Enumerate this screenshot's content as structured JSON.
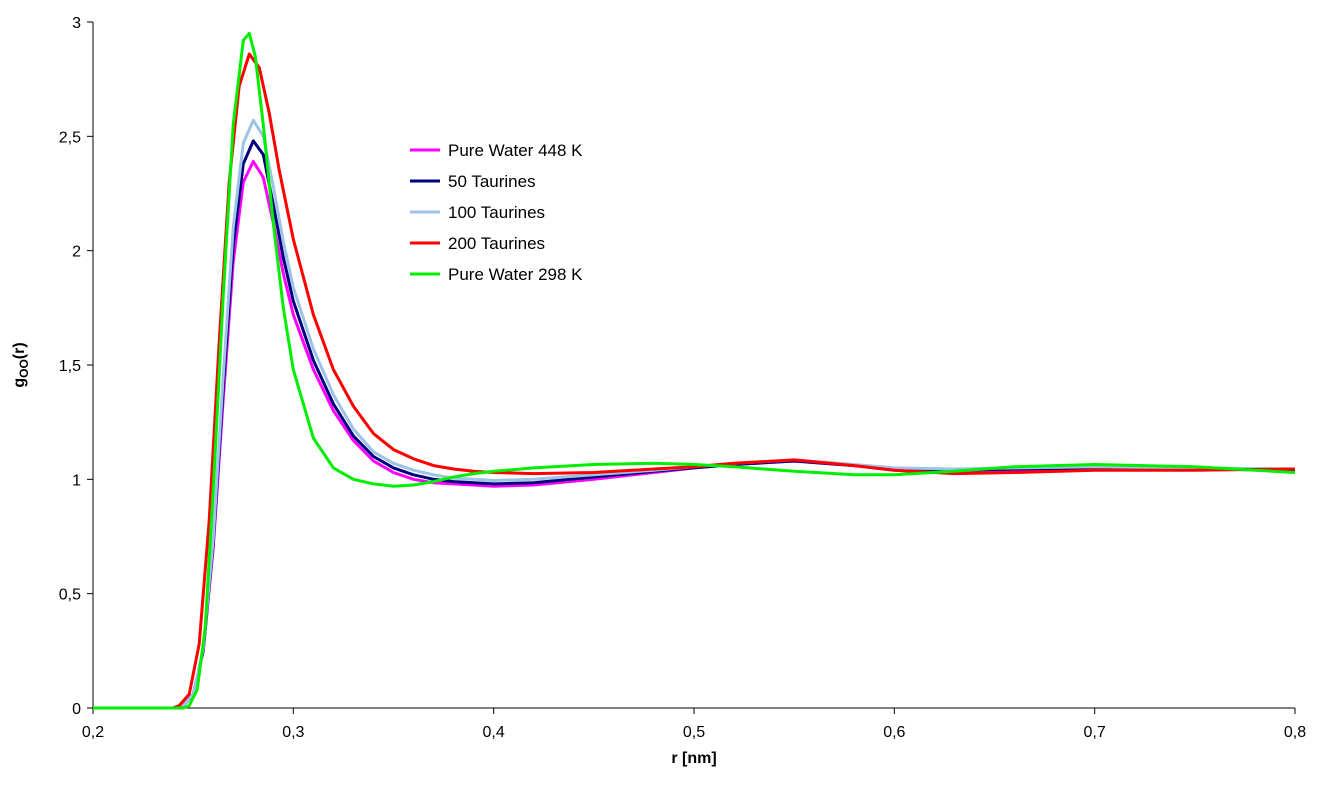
{
  "chart_data": {
    "type": "line",
    "xlabel": "r [nm]",
    "ylabel": "g",
    "ylabel_subscript": "OO",
    "ylabel_suffix": "(r)",
    "xlim": [
      0.2,
      0.8
    ],
    "ylim": [
      0,
      3
    ],
    "x_ticks": [
      0.2,
      0.3,
      0.4,
      0.5,
      0.6,
      0.7,
      0.8
    ],
    "x_tick_labels": [
      "0,2",
      "0,3",
      "0,4",
      "0,5",
      "0,6",
      "0,7",
      "0,8"
    ],
    "y_ticks": [
      0,
      0.5,
      1,
      1.5,
      2,
      2.5,
      3
    ],
    "y_tick_labels": [
      "0",
      "0,5",
      "1",
      "1,5",
      "2",
      "2,5",
      "3"
    ],
    "grid": false,
    "legend_position": "upper-center",
    "series": [
      {
        "name": "Pure Water 448 K",
        "color": "#ff00ff",
        "points": [
          [
            0.2,
            0
          ],
          [
            0.24,
            0
          ],
          [
            0.245,
            0.01
          ],
          [
            0.25,
            0.06
          ],
          [
            0.255,
            0.25
          ],
          [
            0.26,
            0.7
          ],
          [
            0.265,
            1.35
          ],
          [
            0.27,
            1.95
          ],
          [
            0.275,
            2.3
          ],
          [
            0.28,
            2.39
          ],
          [
            0.285,
            2.32
          ],
          [
            0.29,
            2.12
          ],
          [
            0.295,
            1.9
          ],
          [
            0.3,
            1.72
          ],
          [
            0.31,
            1.48
          ],
          [
            0.32,
            1.3
          ],
          [
            0.33,
            1.17
          ],
          [
            0.34,
            1.08
          ],
          [
            0.35,
            1.03
          ],
          [
            0.36,
            1.0
          ],
          [
            0.37,
            0.985
          ],
          [
            0.38,
            0.98
          ],
          [
            0.39,
            0.975
          ],
          [
            0.4,
            0.97
          ],
          [
            0.42,
            0.975
          ],
          [
            0.45,
            1.0
          ],
          [
            0.48,
            1.03
          ],
          [
            0.5,
            1.05
          ],
          [
            0.52,
            1.065
          ],
          [
            0.55,
            1.08
          ],
          [
            0.58,
            1.06
          ],
          [
            0.6,
            1.04
          ],
          [
            0.63,
            1.035
          ],
          [
            0.66,
            1.04
          ],
          [
            0.7,
            1.05
          ],
          [
            0.75,
            1.045
          ],
          [
            0.8,
            1.04
          ]
        ]
      },
      {
        "name": "50 Taurines",
        "color": "#000080",
        "points": [
          [
            0.2,
            0
          ],
          [
            0.24,
            0
          ],
          [
            0.245,
            0.01
          ],
          [
            0.25,
            0.06
          ],
          [
            0.255,
            0.25
          ],
          [
            0.26,
            0.72
          ],
          [
            0.265,
            1.4
          ],
          [
            0.27,
            2.02
          ],
          [
            0.275,
            2.38
          ],
          [
            0.28,
            2.48
          ],
          [
            0.285,
            2.42
          ],
          [
            0.29,
            2.2
          ],
          [
            0.295,
            1.97
          ],
          [
            0.3,
            1.78
          ],
          [
            0.31,
            1.52
          ],
          [
            0.32,
            1.33
          ],
          [
            0.33,
            1.19
          ],
          [
            0.34,
            1.1
          ],
          [
            0.35,
            1.05
          ],
          [
            0.36,
            1.02
          ],
          [
            0.37,
            1.0
          ],
          [
            0.38,
            0.99
          ],
          [
            0.39,
            0.985
          ],
          [
            0.4,
            0.98
          ],
          [
            0.42,
            0.985
          ],
          [
            0.45,
            1.01
          ],
          [
            0.48,
            1.035
          ],
          [
            0.5,
            1.05
          ],
          [
            0.52,
            1.065
          ],
          [
            0.55,
            1.08
          ],
          [
            0.58,
            1.06
          ],
          [
            0.6,
            1.045
          ],
          [
            0.63,
            1.04
          ],
          [
            0.66,
            1.045
          ],
          [
            0.7,
            1.05
          ],
          [
            0.75,
            1.045
          ],
          [
            0.8,
            1.04
          ]
        ]
      },
      {
        "name": "100 Taurines",
        "color": "#9dc3e6",
        "points": [
          [
            0.2,
            0
          ],
          [
            0.24,
            0
          ],
          [
            0.245,
            0.01
          ],
          [
            0.25,
            0.06
          ],
          [
            0.255,
            0.26
          ],
          [
            0.26,
            0.74
          ],
          [
            0.265,
            1.45
          ],
          [
            0.27,
            2.1
          ],
          [
            0.275,
            2.47
          ],
          [
            0.28,
            2.57
          ],
          [
            0.285,
            2.5
          ],
          [
            0.29,
            2.28
          ],
          [
            0.295,
            2.04
          ],
          [
            0.3,
            1.84
          ],
          [
            0.31,
            1.57
          ],
          [
            0.32,
            1.37
          ],
          [
            0.33,
            1.22
          ],
          [
            0.34,
            1.12
          ],
          [
            0.35,
            1.07
          ],
          [
            0.36,
            1.04
          ],
          [
            0.37,
            1.02
          ],
          [
            0.38,
            1.005
          ],
          [
            0.39,
            1.0
          ],
          [
            0.4,
            0.995
          ],
          [
            0.42,
            1.0
          ],
          [
            0.45,
            1.02
          ],
          [
            0.48,
            1.04
          ],
          [
            0.5,
            1.055
          ],
          [
            0.52,
            1.07
          ],
          [
            0.55,
            1.085
          ],
          [
            0.58,
            1.065
          ],
          [
            0.6,
            1.05
          ],
          [
            0.63,
            1.045
          ],
          [
            0.66,
            1.05
          ],
          [
            0.7,
            1.055
          ],
          [
            0.75,
            1.05
          ],
          [
            0.8,
            1.045
          ]
        ]
      },
      {
        "name": "200 Taurines",
        "color": "#ff0000",
        "points": [
          [
            0.2,
            0
          ],
          [
            0.24,
            0
          ],
          [
            0.243,
            0.01
          ],
          [
            0.248,
            0.06
          ],
          [
            0.253,
            0.28
          ],
          [
            0.258,
            0.82
          ],
          [
            0.263,
            1.6
          ],
          [
            0.268,
            2.3
          ],
          [
            0.273,
            2.72
          ],
          [
            0.278,
            2.86
          ],
          [
            0.283,
            2.8
          ],
          [
            0.288,
            2.6
          ],
          [
            0.293,
            2.35
          ],
          [
            0.3,
            2.05
          ],
          [
            0.31,
            1.72
          ],
          [
            0.32,
            1.48
          ],
          [
            0.33,
            1.32
          ],
          [
            0.34,
            1.2
          ],
          [
            0.35,
            1.13
          ],
          [
            0.36,
            1.09
          ],
          [
            0.37,
            1.06
          ],
          [
            0.38,
            1.045
          ],
          [
            0.39,
            1.035
          ],
          [
            0.4,
            1.03
          ],
          [
            0.42,
            1.025
          ],
          [
            0.45,
            1.03
          ],
          [
            0.48,
            1.045
          ],
          [
            0.5,
            1.055
          ],
          [
            0.52,
            1.07
          ],
          [
            0.55,
            1.085
          ],
          [
            0.58,
            1.06
          ],
          [
            0.6,
            1.04
          ],
          [
            0.63,
            1.025
          ],
          [
            0.66,
            1.03
          ],
          [
            0.7,
            1.04
          ],
          [
            0.75,
            1.04
          ],
          [
            0.8,
            1.045
          ]
        ]
      },
      {
        "name": "Pure Water 298 K",
        "color": "#00ee00",
        "points": [
          [
            0.2,
            0
          ],
          [
            0.245,
            0
          ],
          [
            0.248,
            0.01
          ],
          [
            0.252,
            0.08
          ],
          [
            0.256,
            0.35
          ],
          [
            0.26,
            0.95
          ],
          [
            0.265,
            1.8
          ],
          [
            0.27,
            2.55
          ],
          [
            0.275,
            2.92
          ],
          [
            0.278,
            2.95
          ],
          [
            0.281,
            2.85
          ],
          [
            0.285,
            2.55
          ],
          [
            0.29,
            2.12
          ],
          [
            0.295,
            1.75
          ],
          [
            0.3,
            1.48
          ],
          [
            0.31,
            1.18
          ],
          [
            0.32,
            1.05
          ],
          [
            0.33,
            1.0
          ],
          [
            0.34,
            0.98
          ],
          [
            0.35,
            0.97
          ],
          [
            0.36,
            0.975
          ],
          [
            0.37,
            0.99
          ],
          [
            0.38,
            1.01
          ],
          [
            0.39,
            1.025
          ],
          [
            0.4,
            1.035
          ],
          [
            0.42,
            1.05
          ],
          [
            0.45,
            1.065
          ],
          [
            0.48,
            1.07
          ],
          [
            0.5,
            1.065
          ],
          [
            0.52,
            1.055
          ],
          [
            0.55,
            1.035
          ],
          [
            0.58,
            1.02
          ],
          [
            0.6,
            1.02
          ],
          [
            0.63,
            1.035
          ],
          [
            0.66,
            1.055
          ],
          [
            0.7,
            1.065
          ],
          [
            0.75,
            1.055
          ],
          [
            0.8,
            1.03
          ]
        ]
      }
    ]
  }
}
